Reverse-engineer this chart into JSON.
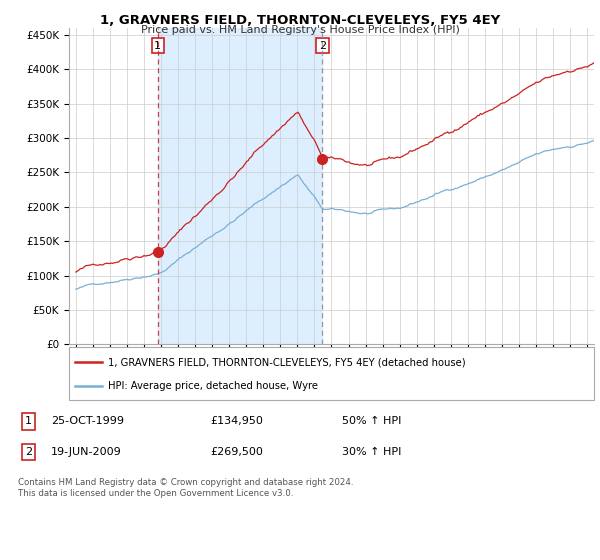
{
  "title": "1, GRAVNERS FIELD, THORNTON-CLEVELEYS, FY5 4EY",
  "subtitle": "Price paid vs. HM Land Registry's House Price Index (HPI)",
  "ylabel_ticks": [
    "£0",
    "£50K",
    "£100K",
    "£150K",
    "£200K",
    "£250K",
    "£300K",
    "£350K",
    "£400K",
    "£450K"
  ],
  "ytick_values": [
    0,
    50000,
    100000,
    150000,
    200000,
    250000,
    300000,
    350000,
    400000,
    450000
  ],
  "ylim": [
    0,
    460000
  ],
  "xlim_start": 1994.6,
  "xlim_end": 2025.4,
  "sale1_date": 1999.81,
  "sale1_price": 134950,
  "sale1_label": "1",
  "sale2_date": 2009.46,
  "sale2_price": 269500,
  "sale2_label": "2",
  "legend_line1": "1, GRAVNERS FIELD, THORNTON-CLEVELEYS, FY5 4EY (detached house)",
  "legend_line2": "HPI: Average price, detached house, Wyre",
  "table_row1": [
    "1",
    "25-OCT-1999",
    "£134,950",
    "50% ↑ HPI"
  ],
  "table_row2": [
    "2",
    "19-JUN-2009",
    "£269,500",
    "30% ↑ HPI"
  ],
  "footer": "Contains HM Land Registry data © Crown copyright and database right 2024.\nThis data is licensed under the Open Government Licence v3.0.",
  "hpi_color": "#7bafd4",
  "price_color": "#cc2222",
  "vline1_color": "#cc2222",
  "vline2_color": "#888888",
  "shade_color": "#ddeeff",
  "background_color": "#ffffff",
  "grid_color": "#cccccc"
}
